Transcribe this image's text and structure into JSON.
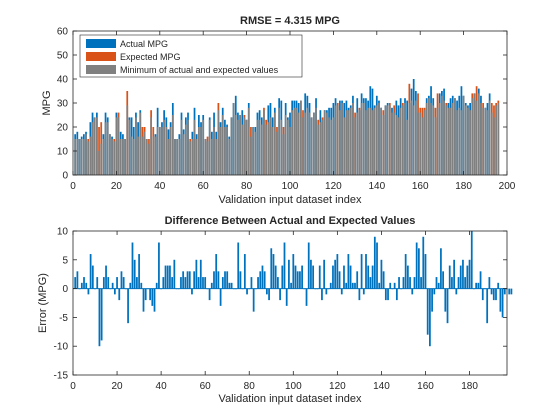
{
  "chart_data": [
    {
      "type": "bar",
      "title": "RMSE = 4.315 MPG",
      "xlabel": "Validation input dataset index",
      "ylabel": "MPG",
      "xlim": [
        0,
        200
      ],
      "ylim": [
        0,
        60
      ],
      "xticks": [
        0,
        20,
        40,
        60,
        80,
        100,
        120,
        140,
        160,
        180,
        200
      ],
      "yticks": [
        0,
        10,
        20,
        30,
        40,
        50,
        60
      ],
      "grid": false,
      "legend_position": "top-left",
      "series": [
        {
          "name": "Actual MPG",
          "color": "#0072bd",
          "values": [
            17,
            18,
            15,
            16,
            17,
            18,
            14,
            22,
            26,
            24,
            26,
            10,
            13,
            17,
            26,
            24,
            17,
            16,
            14,
            26,
            24,
            18,
            17,
            15,
            29,
            24,
            24,
            20,
            26,
            22,
            27,
            16,
            18,
            15,
            13,
            24,
            16,
            17,
            28,
            20,
            22,
            27,
            24,
            19,
            22,
            30,
            15,
            15,
            17,
            26,
            19,
            24,
            26,
            14,
            18,
            28,
            17,
            25,
            22,
            25,
            15,
            14,
            24,
            18,
            26,
            18,
            27,
            22,
            28,
            23,
            21,
            16,
            24,
            30,
            33,
            26,
            25,
            27,
            24,
            23,
            30,
            16,
            20,
            20,
            26,
            27,
            24,
            27,
            21,
            29,
            30,
            24,
            28,
            18,
            32,
            31,
            17,
            30,
            24,
            26,
            31,
            31,
            31,
            30,
            31,
            24,
            34,
            33,
            30,
            24,
            26,
            32,
            21,
            27,
            23,
            27,
            27,
            28,
            28,
            30,
            32,
            29,
            31,
            31,
            30,
            31,
            28,
            29,
            33,
            24,
            32,
            27,
            34,
            32,
            32,
            31,
            37,
            36,
            29,
            33,
            31,
            28,
            25,
            29,
            30,
            29,
            28,
            26,
            31,
            29,
            32,
            29,
            32,
            31,
            30,
            36,
            40,
            35,
            26,
            26,
            24,
            27,
            32,
            33,
            37,
            32,
            24,
            28,
            34,
            35,
            36,
            29,
            30,
            32,
            33,
            32,
            31,
            33,
            37,
            33,
            30,
            29,
            30,
            32,
            34,
            31,
            36,
            33,
            28,
            28,
            30,
            34,
            26,
            24,
            29,
            30
          ]
        },
        {
          "name": "Expected MPG",
          "color": "#d95319",
          "values": [
            15,
            15,
            15,
            15,
            15,
            17,
            15,
            16,
            22,
            24,
            24,
            20,
            22,
            15,
            22,
            22,
            17,
            15,
            15,
            24,
            26,
            15,
            15,
            15,
            35,
            23,
            16,
            15,
            24,
            16,
            26,
            20,
            20,
            15,
            15,
            27,
            20,
            16,
            20,
            20,
            20,
            23,
            20,
            15,
            20,
            25,
            15,
            15,
            15,
            23,
            17,
            21,
            23,
            15,
            15,
            23,
            15,
            20,
            20,
            23,
            15,
            16,
            23,
            15,
            20,
            15,
            30,
            20,
            25,
            20,
            20,
            15,
            24,
            30,
            25,
            23,
            25,
            21,
            25,
            23,
            28,
            20,
            20,
            18,
            23,
            23,
            21,
            28,
            23,
            22,
            24,
            20,
            26,
            20,
            28,
            23,
            20,
            25,
            23,
            20,
            27,
            28,
            28,
            26,
            31,
            27,
            26,
            28,
            26,
            24,
            26,
            28,
            23,
            22,
            24,
            27,
            26,
            24,
            23,
            24,
            29,
            30,
            27,
            30,
            24,
            27,
            27,
            28,
            30,
            26,
            26,
            28,
            30,
            30,
            27,
            28,
            28,
            27,
            28,
            29,
            30,
            28,
            27,
            29,
            29,
            30,
            26,
            29,
            25,
            24,
            28,
            30,
            30,
            23,
            38,
            31,
            29,
            31,
            34,
            28,
            28,
            28,
            30,
            32,
            30,
            29,
            28,
            34,
            30,
            33,
            31,
            30,
            28,
            28,
            30,
            32,
            27,
            28,
            27,
            33,
            29,
            28,
            27,
            34,
            34,
            37,
            34,
            30,
            30,
            28,
            27,
            31,
            30,
            29,
            30,
            31
          ]
        }
      ]
    },
    {
      "type": "bar",
      "title": "Difference Between Actual and Expected Values",
      "xlabel": "Validation input dataset index",
      "ylabel": "Error (MPG)",
      "xlim": [
        0,
        197
      ],
      "ylim": [
        -15,
        10
      ],
      "xticks": [
        0,
        20,
        40,
        60,
        80,
        100,
        120,
        140,
        160,
        180
      ],
      "yticks": [
        -15,
        -10,
        -5,
        0,
        5,
        10
      ],
      "grid": false,
      "series": [
        {
          "color": "#0072bd",
          "values": [
            2,
            3,
            0,
            1,
            2,
            1,
            -1,
            6,
            4,
            0,
            2,
            -10,
            -9,
            2,
            4,
            2,
            0,
            1,
            -1,
            2,
            -2,
            3,
            2,
            0,
            -6,
            1,
            8,
            5,
            2,
            6,
            1,
            -4,
            -2,
            0,
            -2,
            -3,
            -4,
            1,
            8,
            0,
            2,
            4,
            4,
            4,
            2,
            5,
            0,
            0,
            2,
            3,
            2,
            3,
            3,
            -1,
            3,
            5,
            2,
            5,
            2,
            2,
            0,
            -2,
            1,
            3,
            6,
            3,
            -3,
            2,
            3,
            3,
            1,
            1,
            0,
            0,
            8,
            3,
            0,
            6,
            -1,
            0,
            2,
            -4,
            0,
            2,
            3,
            4,
            3,
            -1,
            -2,
            7,
            6,
            4,
            2,
            -2,
            4,
            8,
            -3,
            5,
            1,
            6,
            4,
            3,
            3,
            4,
            0,
            -3,
            8,
            5,
            4,
            0,
            0,
            4,
            -2,
            5,
            -1,
            0,
            1,
            4,
            5,
            6,
            3,
            -1,
            4,
            1,
            6,
            4,
            1,
            1,
            3,
            -2,
            6,
            -1,
            6,
            4,
            2,
            4,
            9,
            8,
            1,
            5,
            3,
            -2,
            -2,
            1,
            0,
            1,
            -2,
            2,
            0,
            2,
            6,
            4,
            2,
            -1,
            2,
            8,
            7,
            2,
            9,
            6,
            -8,
            -10,
            -4,
            -1,
            2,
            1,
            7,
            3,
            -4,
            -6,
            4,
            2,
            5,
            -1,
            2,
            4,
            5,
            2,
            4,
            5,
            10,
            0,
            1,
            1,
            3,
            -2,
            0,
            -6,
            2,
            -1,
            -2,
            -2,
            1,
            -4,
            -5,
            -1,
            0,
            -1,
            -1
          ]
        }
      ]
    }
  ],
  "legend": [
    {
      "label": "Actual MPG",
      "color": "#0072bd"
    },
    {
      "label": "Expected MPG",
      "color": "#d95319"
    },
    {
      "label": "Minimum of actual and expected values",
      "color": "#808080"
    }
  ]
}
